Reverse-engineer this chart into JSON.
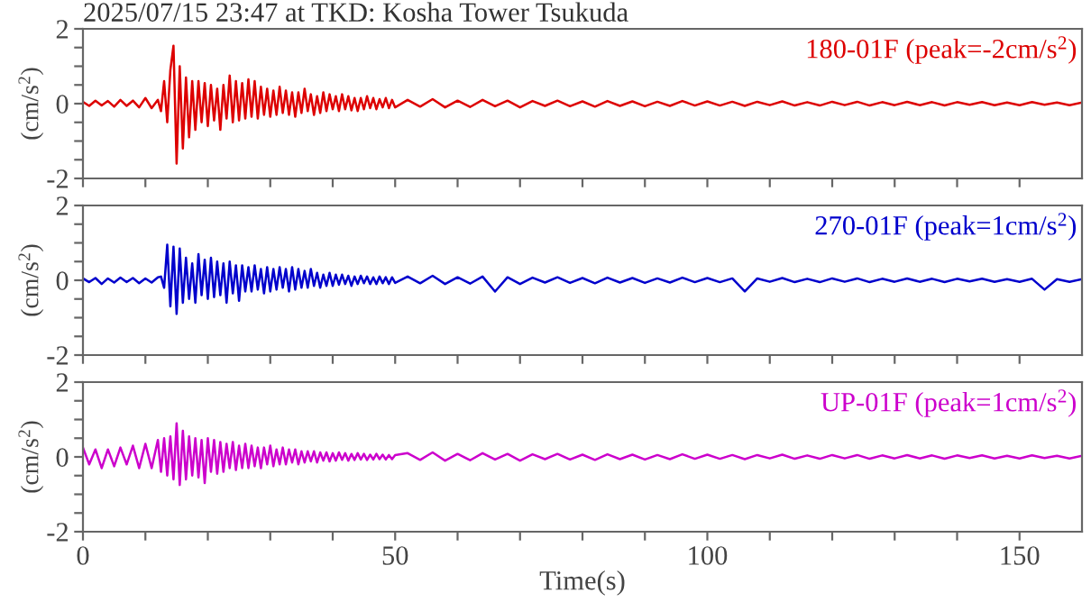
{
  "chart_data": [
    {
      "type": "line",
      "title": "2025/07/15 23:47 at TKD: Kosha Tower Tsukuda",
      "ylabel": "(cm/s$^{2}$)",
      "tick_labels": "y",
      "grid": false,
      "legend": false,
      "marker": "none",
      "line_style": "solid",
      "xlim": [
        0,
        160
      ],
      "xticks": [
        0,
        {
          "value": 10,
          "label": null
        },
        {
          "value": 20,
          "label": null
        },
        {
          "value": 30,
          "label": null
        },
        {
          "value": 40,
          "label": null
        },
        50,
        {
          "value": 60,
          "label": null
        },
        {
          "value": 70,
          "label": null
        },
        {
          "value": 80,
          "label": null
        },
        {
          "value": 90,
          "label": null
        },
        100,
        {
          "value": 110,
          "label": null
        },
        {
          "value": 120,
          "label": null
        },
        {
          "value": 130,
          "label": null
        },
        {
          "value": 140,
          "label": null
        },
        150
      ],
      "ylim": [
        -2,
        2
      ],
      "yticks": [
        -2,
        {
          "value": -1.5,
          "label": null
        },
        {
          "value": -1,
          "label": null
        },
        {
          "value": -0.5,
          "label": null
        },
        0,
        {
          "value": 0.5,
          "label": null
        },
        {
          "value": 1,
          "label": null
        },
        {
          "value": 1.5,
          "label": null
        },
        2
      ],
      "x": [
        0,
        1,
        2,
        3,
        4,
        5,
        6,
        7,
        8,
        9,
        10,
        11,
        12,
        12.5,
        13,
        13.5,
        14,
        14.5,
        15,
        15.5,
        16,
        16.5,
        17,
        17.5,
        18,
        18.5,
        19,
        19.5,
        20,
        20.5,
        21,
        21.5,
        22,
        22.5,
        23,
        23.5,
        24,
        24.5,
        25,
        25.5,
        26,
        26.5,
        27,
        27.5,
        28,
        28.5,
        29,
        29.5,
        30,
        30.5,
        31,
        31.5,
        32,
        32.5,
        33,
        33.5,
        34,
        34.5,
        35,
        35.5,
        36,
        36.5,
        37,
        37.5,
        38,
        38.5,
        39,
        39.5,
        40,
        40.5,
        41,
        41.5,
        42,
        42.5,
        43,
        43.5,
        44,
        44.5,
        45,
        45.5,
        46,
        46.5,
        47,
        47.5,
        48,
        48.5,
        49,
        49.5,
        50,
        52,
        54,
        56,
        58,
        60,
        62,
        64,
        66,
        68,
        70,
        72,
        74,
        76,
        78,
        80,
        82,
        84,
        86,
        88,
        90,
        92,
        94,
        96,
        98,
        100,
        102,
        104,
        106,
        108,
        110,
        112,
        114,
        116,
        118,
        120,
        122,
        124,
        126,
        128,
        130,
        132,
        134,
        136,
        138,
        140,
        142,
        144,
        146,
        148,
        150,
        152,
        154,
        156,
        158,
        160
      ],
      "series": [
        {
          "name": "180-01F (peak=-2cm/s$^{2}$)",
          "color": "#dd0000",
          "values": [
            0.05,
            -0.06,
            0.08,
            -0.05,
            0.07,
            -0.08,
            0.1,
            -0.06,
            0.08,
            -0.1,
            0.15,
            -0.12,
            0.1,
            -0.2,
            0.6,
            -0.5,
            0.9,
            1.55,
            -1.6,
            1.0,
            -1.2,
            0.7,
            -0.9,
            0.6,
            -0.7,
            0.6,
            -0.5,
            0.55,
            -0.6,
            0.5,
            -0.45,
            0.4,
            -0.7,
            0.5,
            -0.4,
            0.75,
            -0.5,
            0.6,
            -0.45,
            0.55,
            -0.4,
            0.65,
            -0.35,
            0.6,
            -0.4,
            0.45,
            -0.3,
            0.4,
            -0.35,
            0.35,
            -0.3,
            0.45,
            -0.25,
            0.35,
            -0.3,
            0.3,
            -0.35,
            0.3,
            -0.25,
            0.4,
            -0.2,
            0.25,
            -0.3,
            0.2,
            -0.25,
            0.3,
            -0.2,
            0.25,
            -0.15,
            0.2,
            -0.2,
            0.25,
            -0.15,
            0.2,
            -0.18,
            0.15,
            -0.2,
            0.15,
            -0.15,
            0.2,
            -0.12,
            0.15,
            -0.15,
            0.12,
            -0.1,
            0.15,
            -0.12,
            0.1,
            -0.1,
            0.1,
            -0.08,
            0.12,
            -0.1,
            0.08,
            -0.09,
            0.1,
            -0.07,
            0.08,
            -0.1,
            0.07,
            -0.06,
            0.08,
            -0.07,
            0.06,
            -0.08,
            0.07,
            -0.06,
            0.06,
            -0.07,
            0.05,
            -0.06,
            0.07,
            -0.05,
            0.06,
            -0.05,
            0.05,
            -0.06,
            0.05,
            -0.04,
            0.06,
            -0.05,
            0.04,
            -0.05,
            0.05,
            -0.04,
            0.05,
            -0.05,
            0.04,
            -0.04,
            0.05,
            -0.04,
            0.04,
            -0.05,
            0.04,
            -0.03,
            0.04,
            -0.04,
            0.03,
            -0.04,
            0.04,
            -0.03,
            0.03,
            -0.04,
            0.03
          ]
        }
      ]
    },
    {
      "type": "line",
      "ylabel": "(cm/s$^{2}$)",
      "tick_labels": "y",
      "grid": false,
      "legend": false,
      "marker": "none",
      "line_style": "solid",
      "xlim": [
        0,
        160
      ],
      "xticks": [
        0,
        {
          "value": 10,
          "label": null
        },
        {
          "value": 20,
          "label": null
        },
        {
          "value": 30,
          "label": null
        },
        {
          "value": 40,
          "label": null
        },
        50,
        {
          "value": 60,
          "label": null
        },
        {
          "value": 70,
          "label": null
        },
        {
          "value": 80,
          "label": null
        },
        {
          "value": 90,
          "label": null
        },
        100,
        {
          "value": 110,
          "label": null
        },
        {
          "value": 120,
          "label": null
        },
        {
          "value": 130,
          "label": null
        },
        {
          "value": 140,
          "label": null
        },
        150
      ],
      "ylim": [
        -2,
        2
      ],
      "yticks": [
        -2,
        {
          "value": -1.5,
          "label": null
        },
        {
          "value": -1,
          "label": null
        },
        {
          "value": -0.5,
          "label": null
        },
        0,
        {
          "value": 0.5,
          "label": null
        },
        {
          "value": 1,
          "label": null
        },
        {
          "value": 1.5,
          "label": null
        },
        2
      ],
      "x": [
        0,
        1,
        2,
        3,
        4,
        5,
        6,
        7,
        8,
        9,
        10,
        11,
        12,
        12.5,
        13,
        13.5,
        14,
        14.5,
        15,
        15.5,
        16,
        16.5,
        17,
        17.5,
        18,
        18.5,
        19,
        19.5,
        20,
        20.5,
        21,
        21.5,
        22,
        22.5,
        23,
        23.5,
        24,
        24.5,
        25,
        25.5,
        26,
        26.5,
        27,
        27.5,
        28,
        28.5,
        29,
        29.5,
        30,
        30.5,
        31,
        31.5,
        32,
        32.5,
        33,
        33.5,
        34,
        34.5,
        35,
        35.5,
        36,
        36.5,
        37,
        37.5,
        38,
        38.5,
        39,
        39.5,
        40,
        40.5,
        41,
        41.5,
        42,
        42.5,
        43,
        43.5,
        44,
        44.5,
        45,
        45.5,
        46,
        46.5,
        47,
        47.5,
        48,
        48.5,
        49,
        49.5,
        50,
        52,
        54,
        56,
        58,
        60,
        62,
        64,
        66,
        68,
        70,
        72,
        74,
        76,
        78,
        80,
        82,
        84,
        86,
        88,
        90,
        92,
        94,
        96,
        98,
        100,
        102,
        104,
        106,
        108,
        110,
        112,
        114,
        116,
        118,
        120,
        122,
        124,
        126,
        128,
        130,
        132,
        134,
        136,
        138,
        140,
        142,
        144,
        146,
        148,
        150,
        152,
        154,
        156,
        158,
        160
      ],
      "series": [
        {
          "name": "270-01F (peak=1cm/s$^{2}$)",
          "color": "#0000cc",
          "values": [
            0.05,
            -0.05,
            0.06,
            -0.1,
            0.05,
            -0.06,
            0.07,
            -0.05,
            0.06,
            -0.08,
            0.05,
            -0.06,
            0.08,
            0.1,
            -0.2,
            0.95,
            -0.7,
            0.9,
            -0.9,
            0.85,
            -0.6,
            0.6,
            -0.5,
            0.45,
            -0.6,
            0.7,
            -0.4,
            0.55,
            -0.5,
            0.6,
            -0.45,
            0.5,
            -0.4,
            0.45,
            -0.6,
            0.5,
            -0.35,
            0.4,
            -0.55,
            0.4,
            -0.3,
            0.35,
            -0.3,
            0.4,
            -0.25,
            0.3,
            -0.35,
            0.35,
            -0.3,
            0.3,
            -0.25,
            0.35,
            -0.2,
            0.3,
            -0.3,
            0.35,
            -0.25,
            0.3,
            -0.2,
            0.25,
            -0.2,
            0.3,
            -0.15,
            0.2,
            -0.2,
            0.15,
            -0.15,
            0.2,
            -0.15,
            0.15,
            -0.12,
            0.15,
            -0.1,
            0.12,
            -0.15,
            0.1,
            -0.1,
            0.12,
            -0.08,
            0.1,
            -0.1,
            0.08,
            -0.1,
            0.1,
            -0.08,
            0.08,
            -0.1,
            0.08,
            -0.07,
            0.1,
            -0.08,
            0.12,
            -0.1,
            0.08,
            -0.09,
            0.1,
            -0.3,
            0.08,
            -0.1,
            0.07,
            -0.06,
            0.08,
            -0.07,
            0.06,
            -0.08,
            0.07,
            -0.06,
            0.06,
            -0.07,
            0.05,
            -0.06,
            0.07,
            -0.05,
            0.06,
            -0.05,
            0.05,
            -0.3,
            0.05,
            -0.04,
            0.06,
            -0.05,
            0.04,
            -0.05,
            0.05,
            -0.04,
            0.05,
            -0.05,
            0.04,
            -0.04,
            0.05,
            -0.04,
            0.04,
            -0.05,
            0.04,
            -0.03,
            0.04,
            -0.04,
            0.03,
            -0.04,
            0.04,
            -0.25,
            0.03,
            -0.04,
            0.03
          ]
        }
      ]
    },
    {
      "type": "line",
      "xlabel": "Time(s)",
      "ylabel": "(cm/s$^{2}$)",
      "grid": false,
      "legend": false,
      "marker": "none",
      "line_style": "solid",
      "xlim": [
        0,
        160
      ],
      "xticks": [
        0,
        {
          "value": 10,
          "label": null
        },
        {
          "value": 20,
          "label": null
        },
        {
          "value": 30,
          "label": null
        },
        {
          "value": 40,
          "label": null
        },
        50,
        {
          "value": 60,
          "label": null
        },
        {
          "value": 70,
          "label": null
        },
        {
          "value": 80,
          "label": null
        },
        {
          "value": 90,
          "label": null
        },
        100,
        {
          "value": 110,
          "label": null
        },
        {
          "value": 120,
          "label": null
        },
        {
          "value": 130,
          "label": null
        },
        {
          "value": 140,
          "label": null
        },
        150
      ],
      "ylim": [
        -2,
        2
      ],
      "yticks": [
        -2,
        {
          "value": -1.5,
          "label": null
        },
        {
          "value": -1,
          "label": null
        },
        {
          "value": -0.5,
          "label": null
        },
        0,
        {
          "value": 0.5,
          "label": null
        },
        {
          "value": 1,
          "label": null
        },
        {
          "value": 1.5,
          "label": null
        },
        2
      ],
      "x": [
        0,
        1,
        2,
        3,
        4,
        5,
        6,
        7,
        8,
        9,
        10,
        11,
        12,
        12.5,
        13,
        13.5,
        14,
        14.5,
        15,
        15.5,
        16,
        16.5,
        17,
        17.5,
        18,
        18.5,
        19,
        19.5,
        20,
        20.5,
        21,
        21.5,
        22,
        22.5,
        23,
        23.5,
        24,
        24.5,
        25,
        25.5,
        26,
        26.5,
        27,
        27.5,
        28,
        28.5,
        29,
        29.5,
        30,
        30.5,
        31,
        31.5,
        32,
        32.5,
        33,
        33.5,
        34,
        34.5,
        35,
        35.5,
        36,
        36.5,
        37,
        37.5,
        38,
        38.5,
        39,
        39.5,
        40,
        40.5,
        41,
        41.5,
        42,
        42.5,
        43,
        43.5,
        44,
        44.5,
        45,
        45.5,
        46,
        46.5,
        47,
        47.5,
        48,
        48.5,
        49,
        49.5,
        50,
        52,
        54,
        56,
        58,
        60,
        62,
        64,
        66,
        68,
        70,
        72,
        74,
        76,
        78,
        80,
        82,
        84,
        86,
        88,
        90,
        92,
        94,
        96,
        98,
        100,
        102,
        104,
        106,
        108,
        110,
        112,
        114,
        116,
        118,
        120,
        122,
        124,
        126,
        128,
        130,
        132,
        134,
        136,
        138,
        140,
        142,
        144,
        146,
        148,
        150,
        152,
        154,
        156,
        158,
        160
      ],
      "series": [
        {
          "name": "UP-01F (peak=1cm/s$^{2}$)",
          "color": "#cc00cc",
          "values": [
            0.25,
            -0.2,
            0.2,
            -0.3,
            0.2,
            -0.25,
            0.25,
            -0.2,
            0.3,
            -0.3,
            0.35,
            -0.3,
            0.45,
            -0.4,
            0.5,
            -0.5,
            0.55,
            -0.6,
            0.9,
            -0.75,
            0.7,
            -0.6,
            0.55,
            -0.5,
            0.5,
            -0.55,
            0.45,
            -0.7,
            0.5,
            -0.4,
            0.45,
            -0.45,
            0.4,
            -0.4,
            0.35,
            -0.3,
            0.4,
            -0.35,
            0.3,
            -0.3,
            0.35,
            -0.3,
            0.3,
            -0.25,
            0.25,
            -0.3,
            0.25,
            -0.2,
            0.3,
            -0.25,
            0.2,
            -0.2,
            0.25,
            -0.2,
            0.2,
            -0.15,
            0.2,
            -0.2,
            0.15,
            -0.15,
            0.15,
            -0.12,
            0.15,
            -0.15,
            0.12,
            -0.1,
            0.12,
            -0.12,
            0.1,
            -0.1,
            0.12,
            -0.08,
            0.1,
            -0.1,
            0.08,
            -0.08,
            0.1,
            -0.07,
            0.08,
            -0.08,
            0.06,
            -0.07,
            0.08,
            -0.06,
            0.06,
            -0.07,
            0.05,
            -0.06,
            0.05,
            0.1,
            -0.08,
            0.12,
            -0.1,
            0.08,
            -0.09,
            0.1,
            -0.07,
            0.08,
            -0.1,
            0.07,
            -0.06,
            0.08,
            -0.07,
            0.06,
            -0.08,
            0.07,
            -0.06,
            0.06,
            -0.07,
            0.05,
            -0.06,
            0.07,
            -0.05,
            0.06,
            -0.05,
            0.05,
            -0.06,
            0.05,
            -0.04,
            0.06,
            -0.05,
            0.04,
            -0.05,
            0.05,
            -0.04,
            0.05,
            -0.05,
            0.04,
            -0.04,
            0.05,
            -0.04,
            0.04,
            -0.05,
            0.04,
            -0.03,
            0.04,
            -0.04,
            0.03,
            -0.04,
            0.04,
            -0.03,
            0.03,
            -0.04,
            0.03
          ]
        }
      ]
    }
  ]
}
